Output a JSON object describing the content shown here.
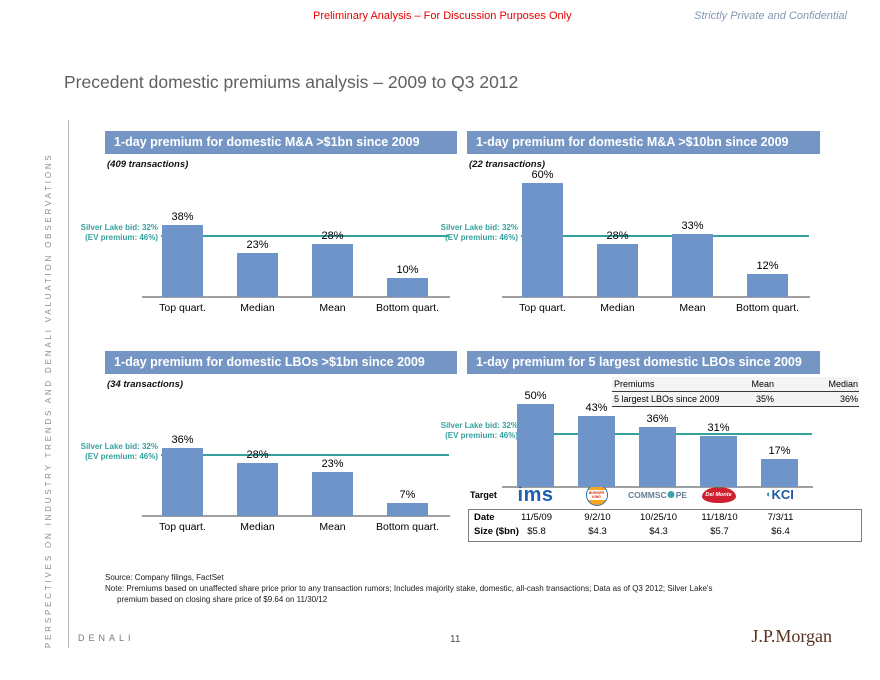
{
  "header": {
    "classification": "Preliminary Analysis – For Discussion Purposes Only",
    "confidentiality": "Strictly Private and Confidential"
  },
  "title": "Precedent domestic premiums analysis – 2009 to Q3 2012",
  "sidebar_text": "PERSPECTIVES ON INDUSTRY TRENDS AND DENALI VALUATION OBSERVATIONS",
  "reference_line": {
    "label_line1": "Silver Lake bid: 32%",
    "label_line2": "(EV premium: 46%)",
    "value": 32
  },
  "chart_data": [
    {
      "type": "bar",
      "title": "1-day premium for domestic M&A >$1bn since 2009",
      "subtitle": "(409 transactions)",
      "categories": [
        "Top quart.",
        "Median",
        "Mean",
        "Bottom quart."
      ],
      "values": [
        38,
        23,
        28,
        10
      ],
      "unit": "%",
      "ylim": [
        0,
        74
      ],
      "reference_line_value": 32,
      "grid": false
    },
    {
      "type": "bar",
      "title": "1-day premium for domestic M&A >$10bn since 2009",
      "subtitle": "(22 transactions)",
      "categories": [
        "Top quart.",
        "Median",
        "Mean",
        "Bottom quart."
      ],
      "values": [
        60,
        28,
        33,
        12
      ],
      "unit": "%",
      "ylim": [
        0,
        74
      ],
      "reference_line_value": 32,
      "grid": false
    },
    {
      "type": "bar",
      "title": "1-day premium for domestic LBOs >$1bn since 2009",
      "subtitle": "(34 transactions)",
      "categories": [
        "Top quart.",
        "Median",
        "Mean",
        "Bottom quart."
      ],
      "values": [
        36,
        28,
        23,
        7
      ],
      "unit": "%",
      "ylim": [
        0,
        74
      ],
      "reference_line_value": 32,
      "grid": false
    },
    {
      "type": "bar",
      "title": "1-day premium for 5 largest domestic LBOs since 2009",
      "values": [
        50,
        43,
        36,
        31,
        17
      ],
      "unit": "%",
      "ylim": [
        0,
        84
      ],
      "reference_line_value": 32,
      "grid": false,
      "companies": [
        "ims",
        "BURGER KING",
        "COMMSCOPE",
        "Del Monte",
        "KCI"
      ],
      "target_label": "Target",
      "summary_table": {
        "col_header": "Premiums",
        "mean_header": "Mean",
        "median_header": "Median",
        "row_label": "5 largest LBOs since 2009",
        "mean_value": "35%",
        "median_value": "36%"
      },
      "detail_table": {
        "date_label": "Date",
        "size_label": "Size ($bn)",
        "dates": [
          "11/5/09",
          "9/2/10",
          "10/25/10",
          "11/18/10",
          "7/3/11"
        ],
        "sizes": [
          "$5.8",
          "$4.3",
          "$4.3",
          "$5.7",
          "$6.4"
        ]
      }
    }
  ],
  "footnotes": {
    "source": "Source: Company filings, FactSet",
    "note_line1": "Note: Premiums based on unaffected share price prior to any transaction rumors; Includes majority stake, domestic, all-cash transactions; Data as of Q3 2012; Silver Lake's",
    "note_line2": "premium based on closing share price of $9.64 on 11/30/12"
  },
  "footer": {
    "client_name": "DENALI",
    "page_number": "11",
    "bank_logo": "J.P.Morgan"
  },
  "colors": {
    "banner_blue": "#7596c4",
    "bar_blue": "#6f94c9",
    "reference_teal": "#35a19e",
    "alert_red": "#e60000",
    "confidential_blue": "#8497b0",
    "jpm_brown": "#59301f"
  }
}
